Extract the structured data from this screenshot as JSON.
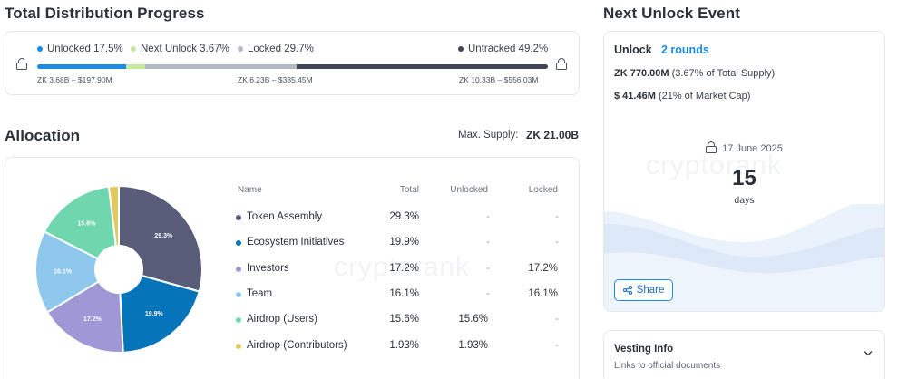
{
  "distribution": {
    "title": "Total Distribution Progress",
    "legend": [
      {
        "label": "Unlocked 17.5%",
        "color": "#1b8be5"
      },
      {
        "label": "Next Unlock 3.67%",
        "color": "#c6e89a"
      },
      {
        "label": "Locked 29.7%",
        "color": "#b4b9c6"
      },
      {
        "label": "Untracked 49.2%",
        "color": "#3f4458"
      }
    ],
    "segments": [
      17.5,
      3.67,
      29.7,
      49.2
    ],
    "ranges": {
      "unlocked": "ZK 3.68B – $197.90M",
      "locked": "ZK 6.23B – $335.45M",
      "untracked": "ZK 10.33B – $556.03M"
    }
  },
  "allocation": {
    "title": "Allocation",
    "max_supply_label": "Max. Supply:",
    "max_supply_value": "ZK 21.00B",
    "watermark": "cryptorank",
    "columns": {
      "name": "Name",
      "total": "Total",
      "unlocked": "Unlocked",
      "locked": "Locked"
    },
    "rows": [
      {
        "name": "Token Assembly",
        "total": "29.3%",
        "unlocked": "-",
        "locked": "-",
        "color": "#585e7a"
      },
      {
        "name": "Ecosystem Initiatives",
        "total": "19.9%",
        "unlocked": "-",
        "locked": "-",
        "color": "#0574b8"
      },
      {
        "name": "Investors",
        "total": "17.2%",
        "unlocked": "-",
        "locked": "17.2%",
        "color": "#9f97d6"
      },
      {
        "name": "Team",
        "total": "16.1%",
        "unlocked": "-",
        "locked": "16.1%",
        "color": "#8ec8ec"
      },
      {
        "name": "Airdrop (Users)",
        "total": "15.6%",
        "unlocked": "15.6%",
        "locked": "-",
        "color": "#6fd6ad"
      },
      {
        "name": "Airdrop (Contributors)",
        "total": "1.93%",
        "unlocked": "1.93%",
        "locked": "-",
        "color": "#e3c860"
      }
    ]
  },
  "chart_data": {
    "type": "pie",
    "categories": [
      "Token Assembly",
      "Ecosystem Initiatives",
      "Investors",
      "Team",
      "Airdrop (Users)",
      "Airdrop (Contributors)"
    ],
    "values": [
      29.3,
      19.9,
      17.2,
      16.1,
      15.6,
      1.93
    ],
    "slice_labels": [
      "29.3%",
      "19.9%",
      "17.2%",
      "16.1%",
      "15.6%",
      ""
    ],
    "colors": [
      "#585e7a",
      "#0574b8",
      "#9f97d6",
      "#8ec8ec",
      "#6fd6ad",
      "#e3c860"
    ],
    "donut": true
  },
  "next_unlock": {
    "title": "Next Unlock Event",
    "unlock_label": "Unlock",
    "rounds_label": "2 rounds",
    "amount": "ZK 770.00M",
    "amount_note": "(3.67% of Total Supply)",
    "usd": "$ 41.46M",
    "usd_note": "(21% of Market Cap)",
    "date": "17 June 2025",
    "days_value": "15",
    "days_label": "days",
    "watermark": "cryptorank",
    "share_label": "Share"
  },
  "vesting": {
    "title": "Vesting Info",
    "subtitle": "Links to official documents"
  }
}
